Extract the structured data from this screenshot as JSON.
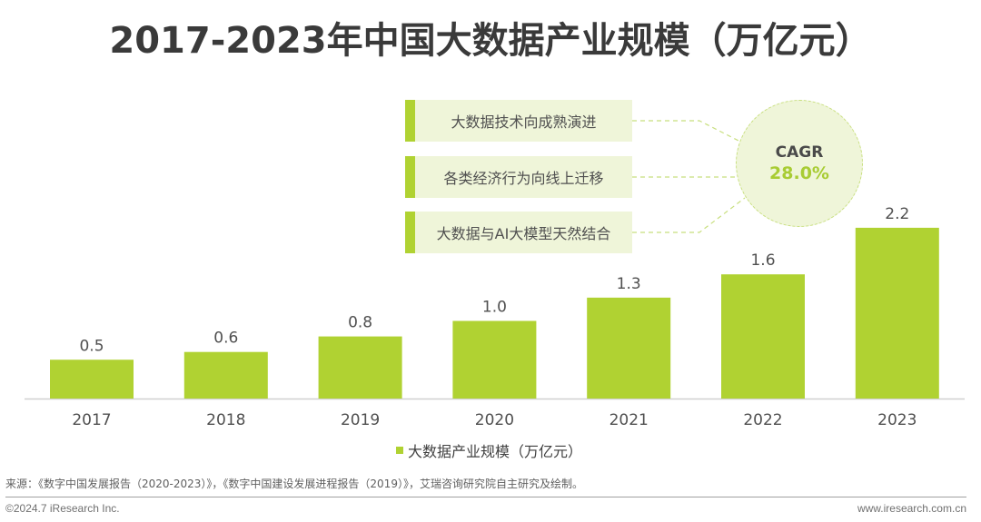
{
  "title": "2017-2023年中国大数据产业规模（万亿元）",
  "drivers": [
    "大数据技术向成熟演进",
    "各类经济行为向线上迁移",
    "大数据与AI大模型天然结合"
  ],
  "cagr": {
    "label": "CAGR",
    "value": "28.0%"
  },
  "colors": {
    "bar": "#b0d232",
    "accent_text": "#a8cc33",
    "panel": "#eff5d9"
  },
  "chart_data": {
    "type": "bar",
    "title": "2017-2023年中国大数据产业规模（万亿元）",
    "categories": [
      "2017",
      "2018",
      "2019",
      "2020",
      "2021",
      "2022",
      "2023"
    ],
    "series": [
      {
        "name": "大数据产业规模（万亿元）",
        "values": [
          0.5,
          0.6,
          0.8,
          1.0,
          1.3,
          1.6,
          2.2
        ]
      }
    ],
    "value_labels": [
      "0.5",
      "0.6",
      "0.8",
      "1.0",
      "1.3",
      "1.6",
      "2.2"
    ],
    "xlabel": "",
    "ylabel": "",
    "ylim": [
      0,
      2.2
    ],
    "grid": false,
    "legend": "bottom-center",
    "annotation": "CAGR 28.0%"
  },
  "legend_label": "大数据产业规模（万亿元）",
  "footer": {
    "source": "来源：《数字中国发展报告（2020-2023）》，《数字中国建设发展进程报告（2019）》，艾瑞咨询研究院自主研究及绘制。",
    "copyright": "©2024.7 iResearch Inc.",
    "website": "www.iresearch.com.cn"
  }
}
